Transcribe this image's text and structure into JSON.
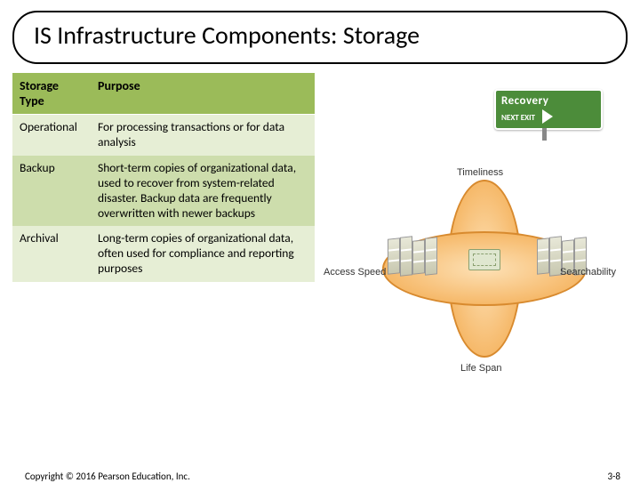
{
  "title": "IS Infrastructure Components: Storage",
  "table": {
    "headers": [
      "Storage Type",
      "Purpose"
    ],
    "rows": [
      {
        "type": "Operational",
        "purpose": "For processing transactions or for data analysis"
      },
      {
        "type": "Backup",
        "purpose": "Short-term copies of organizational data, used to recover from system-related disaster. Backup data are frequently overwritten with newer backups"
      },
      {
        "type": "Archival",
        "purpose": "Long-term copies of organizational data, often used for compliance and reporting purposes"
      }
    ],
    "header_bg": "#9bbb59",
    "row_even_bg": "#e6eed5",
    "row_odd_bg": "#cdddac"
  },
  "diagram": {
    "sign": {
      "line1": "Recovery",
      "line2": "NEXT EXIT",
      "bg": "#4c8c3a"
    },
    "labels": {
      "top": "Timeliness",
      "bottom": "Life Span",
      "left": "Access Speed",
      "right": "Searchability"
    },
    "ellipse_fill": "#f6b96a",
    "ellipse_border": "#d88a2e"
  },
  "footer": {
    "copyright": "Copyright © 2016 Pearson Education, Inc.",
    "page": "3-8"
  }
}
